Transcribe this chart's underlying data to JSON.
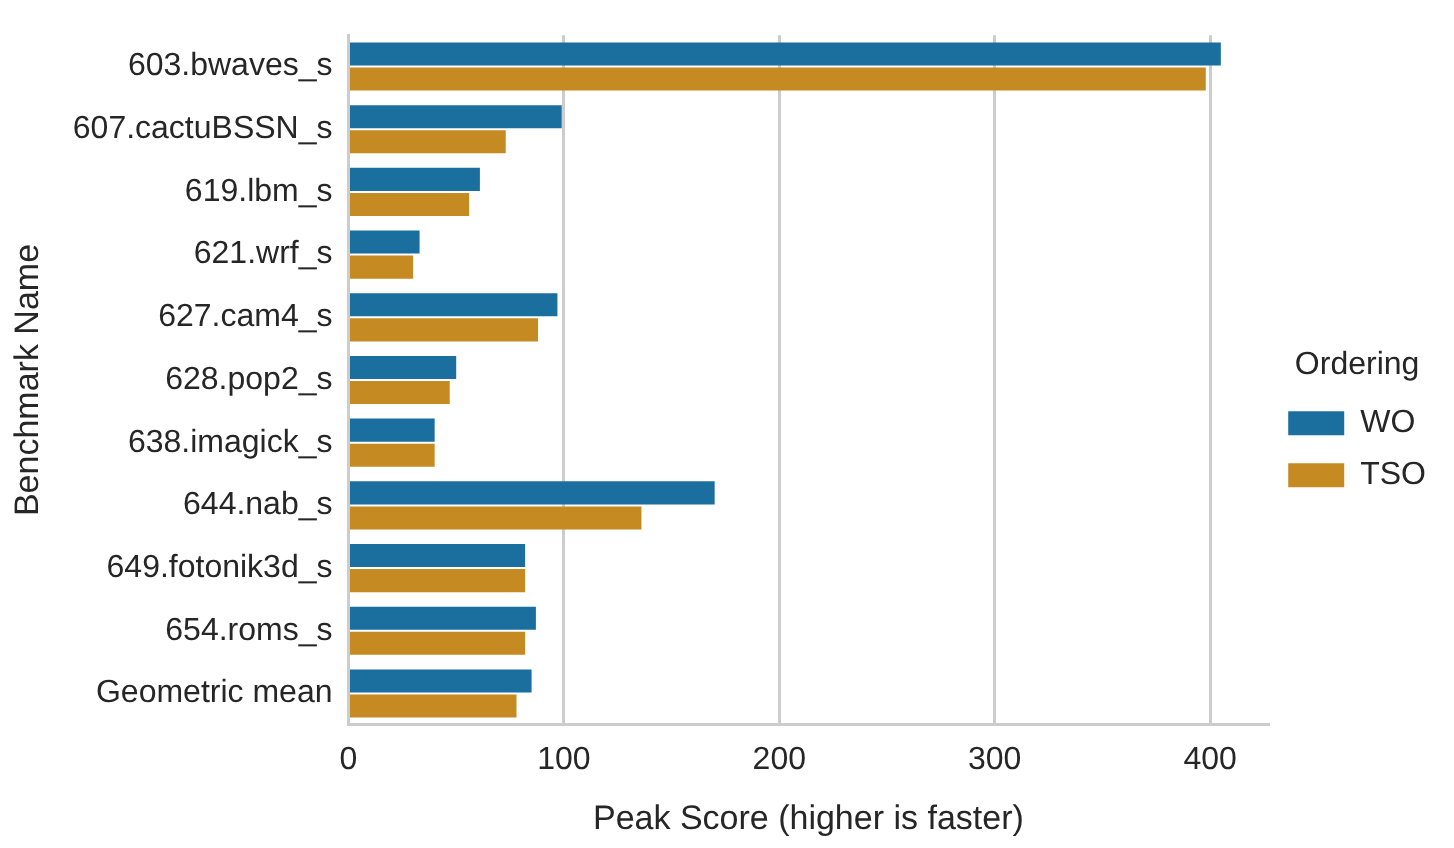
{
  "chart_data": {
    "type": "bar",
    "orientation": "horizontal",
    "xlabel": "Peak Score (higher is faster)",
    "ylabel": "Benchmark Name",
    "legend_title": "Ordering",
    "legend": "right",
    "grid": "x",
    "categories": [
      "603.bwaves_s",
      "607.cactuBSSN_s",
      "619.lbm_s",
      "621.wrf_s",
      "627.cam4_s",
      "628.pop2_s",
      "638.imagick_s",
      "644.nab_s",
      "649.fotonik3d_s",
      "654.roms_s",
      "Geometric mean"
    ],
    "xlim": [
      0,
      427
    ],
    "xticks": [
      0,
      100,
      200,
      300,
      400
    ],
    "series": [
      {
        "name": "WO",
        "color": "#1a6f9f",
        "values": [
          405,
          99,
          61,
          33,
          97,
          50,
          40,
          170,
          82,
          87,
          85
        ]
      },
      {
        "name": "TSO",
        "color": "#c68a22",
        "values": [
          398,
          73,
          56,
          30,
          88,
          47,
          40,
          136,
          82,
          82,
          78
        ]
      }
    ]
  }
}
